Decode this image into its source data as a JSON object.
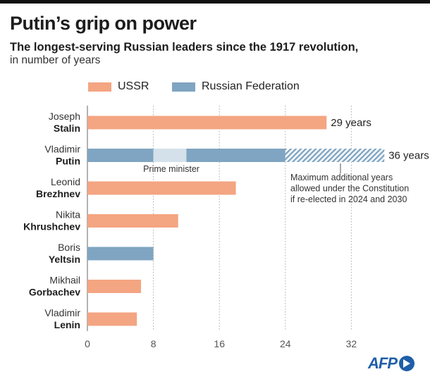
{
  "header": {
    "title": "Putin’s grip on power",
    "subtitle": "The longest-serving Russian leaders since the 1917 revolution,",
    "subtitle2": "in number of years"
  },
  "legend": {
    "ussr": "USSR",
    "rf": "Russian Federation"
  },
  "colors": {
    "ussr": "#f4a582",
    "rf": "#7fa5c2",
    "pm": "#d4e1ea",
    "grid": "#aaaaaa",
    "axis": "#666666",
    "logo": "#1f5fa8"
  },
  "source": {
    "logo": "AFP"
  },
  "chart_data": {
    "type": "bar",
    "orientation": "horizontal",
    "xlim": [
      0,
      36
    ],
    "xticks": [
      0,
      8,
      16,
      24,
      32
    ],
    "grid": true,
    "leaders": [
      {
        "first": "Joseph",
        "last": "Stalin",
        "segments": [
          {
            "from": 0,
            "to": 29,
            "kind": "ussr"
          }
        ],
        "label": "29 years"
      },
      {
        "first": "Vladimir",
        "last": "Putin",
        "segments": [
          {
            "from": 0,
            "to": 8,
            "kind": "rf"
          },
          {
            "from": 8,
            "to": 12,
            "kind": "pm"
          },
          {
            "from": 12,
            "to": 24,
            "kind": "rf"
          },
          {
            "from": 24,
            "to": 36,
            "kind": "hatched"
          }
        ],
        "label": "36 years"
      },
      {
        "first": "Leonid",
        "last": "Brezhnev",
        "segments": [
          {
            "from": 0,
            "to": 18,
            "kind": "ussr"
          }
        ],
        "label": ""
      },
      {
        "first": "Nikita",
        "last": "Khrushchev",
        "segments": [
          {
            "from": 0,
            "to": 11,
            "kind": "ussr"
          }
        ],
        "label": ""
      },
      {
        "first": "Boris",
        "last": "Yeltsin",
        "segments": [
          {
            "from": 0,
            "to": 8,
            "kind": "rf"
          }
        ],
        "label": ""
      },
      {
        "first": "Mikhail",
        "last": "Gorbachev",
        "segments": [
          {
            "from": 0,
            "to": 6.5,
            "kind": "ussr"
          }
        ],
        "label": ""
      },
      {
        "first": "Vladimir",
        "last": "Lenin",
        "segments": [
          {
            "from": 0,
            "to": 6,
            "kind": "ussr"
          }
        ],
        "label": ""
      }
    ],
    "annotations": {
      "pm": {
        "text": "Prime minister",
        "at": 10
      },
      "max": {
        "lines": [
          "Maximum additional years",
          "allowed under the Constitution",
          "if re-elected in 2024 and 2030"
        ],
        "at": 30
      }
    }
  }
}
